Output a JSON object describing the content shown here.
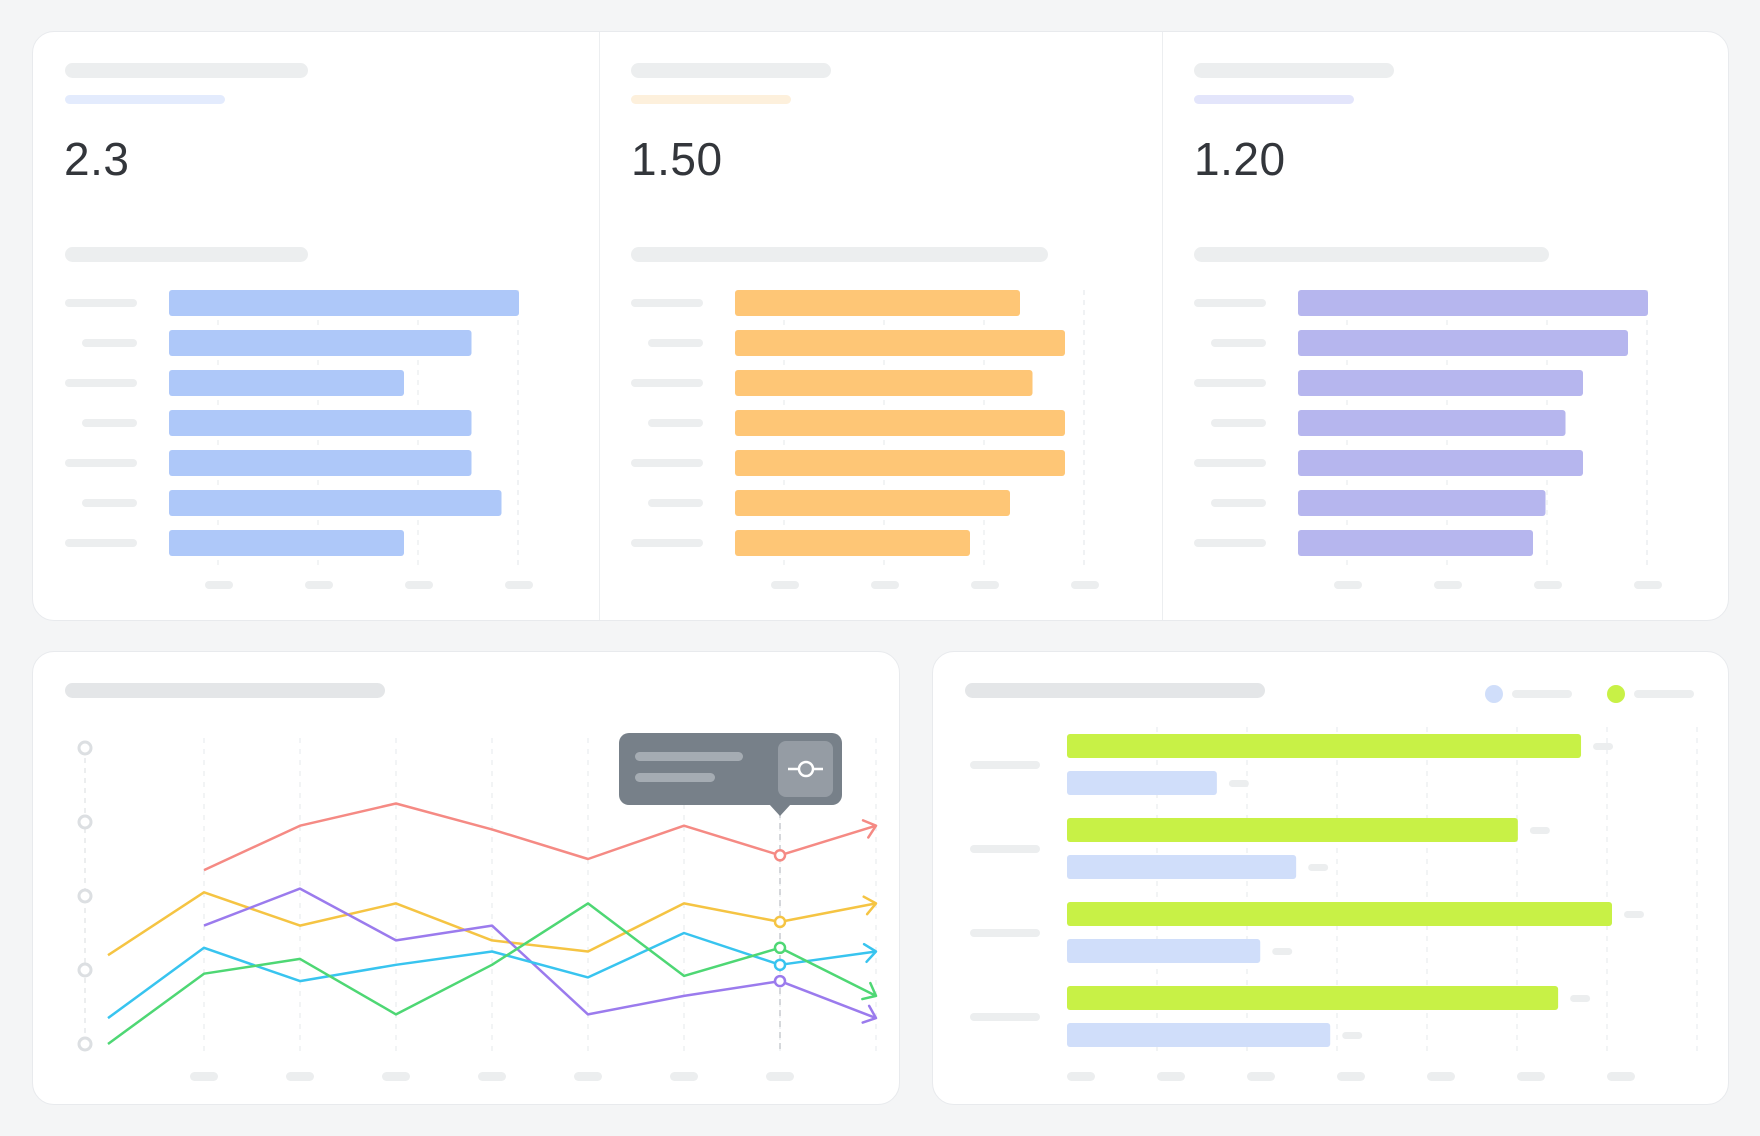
{
  "colors": {
    "background": "#f4f5f6",
    "placeholder": "#eceeef",
    "placeholder_dark": "#e4e6e8",
    "grid": "#eef0f2"
  },
  "kpi_panels": [
    {
      "value": "2.3",
      "accent": "#e3ebfd",
      "bar_color": "#aec8f9",
      "bars": [
        7,
        6.05,
        4.7,
        6.05,
        6.05,
        6.65,
        4.7
      ],
      "xmax": 7
    },
    {
      "value": "1.50",
      "accent": "#fdf0dc",
      "bar_color": "#fec676",
      "bars": [
        5.7,
        6.6,
        5.95,
        6.6,
        6.6,
        5.5,
        4.7
      ],
      "xmax": 7
    },
    {
      "value": "1.20",
      "accent": "#e3e5fb",
      "bar_color": "#b6b6ee",
      "bars": [
        7,
        6.6,
        5.7,
        5.35,
        5.7,
        4.95,
        4.7
      ],
      "xmax": 7
    }
  ],
  "chart_data": [
    {
      "type": "bar",
      "orientation": "horizontal",
      "series": [
        {
          "values": [
            7,
            6.05,
            4.7,
            6.05,
            6.05,
            6.65,
            4.7
          ]
        }
      ],
      "xlim": [
        0,
        7
      ],
      "grid": true,
      "color": "#aec8f9"
    },
    {
      "type": "bar",
      "orientation": "horizontal",
      "series": [
        {
          "values": [
            5.7,
            6.6,
            5.95,
            6.6,
            6.6,
            5.5,
            4.7
          ]
        }
      ],
      "xlim": [
        0,
        7
      ],
      "grid": true,
      "color": "#fec676"
    },
    {
      "type": "bar",
      "orientation": "horizontal",
      "series": [
        {
          "values": [
            7,
            6.6,
            5.7,
            5.35,
            5.7,
            4.95,
            4.7
          ]
        }
      ],
      "xlim": [
        0,
        7
      ],
      "grid": true,
      "color": "#b6b6ee"
    },
    {
      "type": "line",
      "x": [
        0,
        1,
        2,
        3,
        4,
        5,
        6,
        7,
        8
      ],
      "ylim": [
        0,
        4
      ],
      "highlight_index": 7,
      "series": [
        {
          "color": "#f58a84",
          "values": [
            null,
            2.35,
            2.95,
            3.25,
            2.9,
            2.5,
            2.95,
            2.55,
            2.95
          ]
        },
        {
          "color": "#f5c443",
          "values": [
            1.2,
            2.05,
            1.6,
            1.9,
            1.4,
            1.25,
            1.9,
            1.65,
            1.9
          ]
        },
        {
          "color": "#9b7bed",
          "values": [
            null,
            1.6,
            2.1,
            1.4,
            1.6,
            0.4,
            0.65,
            0.85,
            0.35
          ]
        },
        {
          "color": "#38c4ef",
          "values": [
            0.35,
            1.3,
            0.85,
            1.07,
            1.25,
            0.9,
            1.5,
            1.07,
            1.25
          ]
        },
        {
          "color": "#4ed774",
          "values": [
            0,
            0.95,
            1.15,
            0.4,
            1.07,
            1.9,
            0.92,
            1.3,
            0.65
          ]
        }
      ],
      "grid": true
    },
    {
      "type": "bar",
      "orientation": "horizontal",
      "series": [
        {
          "color": "#c8f146",
          "values": [
            8.3,
            7.28,
            8.8,
            7.93
          ]
        },
        {
          "color": "#d0defa",
          "values": [
            2.42,
            3.7,
            3.12,
            4.25
          ]
        }
      ],
      "xlim": [
        0,
        9
      ],
      "legend": "top-right",
      "grid": true
    }
  ]
}
